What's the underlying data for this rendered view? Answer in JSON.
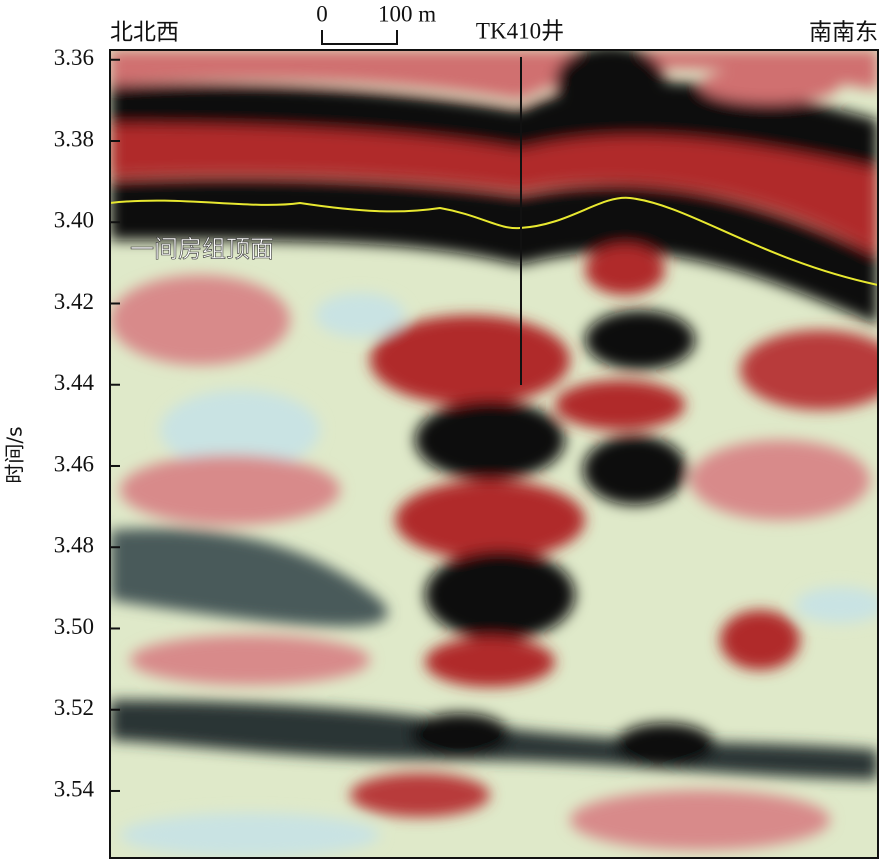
{
  "chart_data": {
    "type": "seismic",
    "ylabel": "时间/s",
    "ylim": [
      3.3576,
      3.5565
    ],
    "yticks": [
      3.36,
      3.38,
      {
        "value": 3.4,
        "label": "3.40"
      },
      3.42,
      3.44,
      3.46,
      3.48,
      {
        "value": 3.5,
        "label": "3.50"
      },
      3.52,
      3.54
    ],
    "left_label": "北北西",
    "right_label": "南南东",
    "well_label": "TK410井",
    "horizon_label": "一间房组顶面",
    "scale_bar": {
      "start": "0",
      "end": "100 m"
    }
  }
}
